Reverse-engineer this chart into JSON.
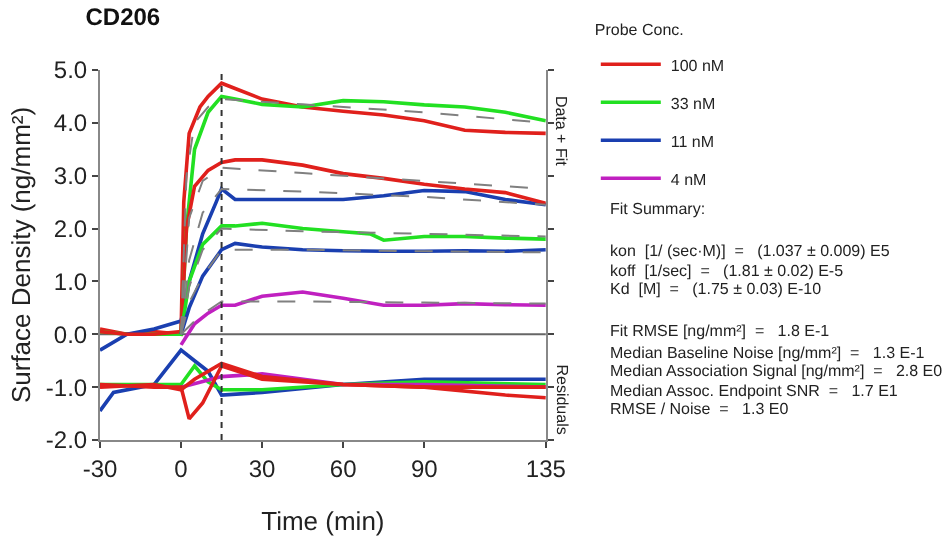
{
  "chart_data": {
    "type": "line",
    "title": "CD206",
    "xlabel": "Time (min)",
    "ylabel": "Surface Density (ng/mm²)",
    "legend_title": "Probe Conc.",
    "xlim": [
      -30,
      135
    ],
    "xticks": [
      -30,
      0,
      30,
      60,
      90,
      135
    ],
    "ylim": [
      -2,
      5
    ],
    "yticks": [
      {
        "value": -2,
        "label": "-2.0"
      },
      {
        "value": -1,
        "label": "-1.0"
      },
      {
        "value": 0,
        "label": "0.0"
      },
      {
        "value": 1,
        "label": "1.0"
      },
      {
        "value": 2,
        "label": "2.0"
      },
      {
        "value": 3,
        "label": "3.0"
      },
      {
        "value": 4,
        "label": "4.0"
      },
      {
        "value": 5,
        "label": "5.0"
      }
    ],
    "grid": false,
    "legend": "top right",
    "ref_lines": [
      {
        "axis": "x",
        "value": 15,
        "color": "#333333",
        "line_style": "dotted"
      },
      {
        "axis": "y",
        "value": 0,
        "color": "#666666",
        "line_style": "solid"
      }
    ],
    "annotations": [
      "Data + Fit",
      "Residuals",
      "Fit Summary:",
      "kon  [1/ (sec·M)]  =   (1.037 ± 0.009) E5",
      "koff  [1/sec]  =   (1.81 ± 0.02) E-5",
      "Kd  [M]  =   (1.75 ± 0.03) E-10",
      "Fit RMSE [ng/mm²]  =   1.8 E-1",
      "Median Baseline Noise [ng/mm²]  =   1.3 E-1",
      "Median Association Signal [ng/mm²]  =   2.8 E0",
      "Median Assoc. Endpoint SNR  =   1.7 E1",
      "RMSE / Noise  =   1.3 E0"
    ],
    "series": [
      {
        "name": "100 nM",
        "color": "#e0201c",
        "x": [
          -30,
          -20,
          -10,
          0,
          1,
          3,
          7,
          10,
          15,
          20,
          30,
          45,
          60,
          75,
          90,
          105,
          120,
          135
        ],
        "values": [
          0.1,
          0.0,
          0.05,
          0.0,
          2.5,
          3.8,
          4.3,
          4.5,
          4.75,
          4.65,
          4.45,
          4.3,
          4.22,
          4.15,
          4.04,
          3.86,
          3.82,
          3.8
        ]
      },
      {
        "name": "33 nM",
        "color": "#22e022",
        "x": [
          -30,
          -20,
          -10,
          0,
          2,
          5,
          10,
          15,
          20,
          30,
          45,
          60,
          75,
          90,
          105,
          120,
          135
        ],
        "values": [
          0.05,
          0.0,
          0.0,
          0.0,
          2.0,
          3.5,
          4.2,
          4.5,
          4.45,
          4.35,
          4.3,
          4.42,
          4.4,
          4.34,
          4.3,
          4.2,
          4.04
        ]
      },
      {
        "name": "11 nM",
        "color": "#1a3fb0",
        "x": [
          -30,
          -20,
          -10,
          0,
          3,
          8,
          13,
          15,
          20,
          30,
          60,
          75,
          90,
          105,
          120,
          135
        ],
        "values": [
          -0.3,
          0.0,
          0.1,
          0.25,
          1.0,
          1.9,
          2.5,
          2.75,
          2.55,
          2.55,
          2.55,
          2.62,
          2.72,
          2.7,
          2.55,
          2.45
        ]
      },
      {
        "name": "4 nM",
        "color": "#c020c0",
        "x": [
          0,
          5,
          10,
          15,
          20,
          30,
          45,
          60,
          75,
          90,
          105,
          120,
          135
        ],
        "values": [
          -0.2,
          0.2,
          0.4,
          0.55,
          0.55,
          0.72,
          0.8,
          0.68,
          0.55,
          0.55,
          0.58,
          0.56,
          0.55
        ]
      },
      {
        "color": "#e0201c",
        "x": [
          -30,
          -20,
          -10,
          0,
          2,
          5,
          10,
          15,
          20,
          30,
          45,
          60,
          75,
          90,
          105,
          120,
          135
        ],
        "values": [
          0.05,
          0.0,
          0.0,
          0.05,
          2.0,
          2.8,
          3.1,
          3.25,
          3.3,
          3.3,
          3.2,
          3.04,
          2.95,
          2.84,
          2.75,
          2.68,
          2.48
        ]
      },
      {
        "color": "#22e022",
        "x": [
          0,
          3,
          8,
          15,
          20,
          30,
          45,
          60,
          70,
          75,
          90,
          105,
          120,
          135
        ],
        "values": [
          0.0,
          1.0,
          1.7,
          2.05,
          2.05,
          2.1,
          2.0,
          1.94,
          1.9,
          1.78,
          1.85,
          1.85,
          1.82,
          1.8
        ]
      },
      {
        "color": "#1a3fb0",
        "x": [
          0,
          3,
          8,
          15,
          20,
          30,
          45,
          60,
          75,
          90,
          105,
          120,
          135
        ],
        "values": [
          0.0,
          0.5,
          1.1,
          1.6,
          1.72,
          1.65,
          1.6,
          1.58,
          1.57,
          1.57,
          1.58,
          1.57,
          1.6
        ]
      },
      {
        "color": "#808080",
        "line_style": "dashed",
        "x": [
          0,
          2,
          5,
          10,
          15,
          45,
          90,
          135
        ],
        "values": [
          0.0,
          3.0,
          4.0,
          4.3,
          4.45,
          4.35,
          4.2,
          4.0
        ]
      },
      {
        "color": "#808080",
        "line_style": "dashed",
        "x": [
          0,
          3,
          8,
          15,
          45,
          90,
          135
        ],
        "values": [
          0.0,
          2.2,
          2.9,
          3.15,
          3.05,
          2.9,
          2.75
        ]
      },
      {
        "color": "#808080",
        "line_style": "dashed",
        "x": [
          0,
          3,
          8,
          15,
          45,
          90,
          135
        ],
        "values": [
          0.0,
          1.4,
          2.3,
          2.75,
          2.7,
          2.6,
          2.45
        ]
      },
      {
        "color": "#808080",
        "line_style": "dashed",
        "x": [
          0,
          3,
          8,
          15,
          45,
          90,
          135
        ],
        "values": [
          0.0,
          0.9,
          1.6,
          2.0,
          1.95,
          1.9,
          1.85
        ]
      },
      {
        "color": "#808080",
        "line_style": "dashed",
        "x": [
          0,
          3,
          8,
          15,
          45,
          90,
          135
        ],
        "values": [
          0.0,
          0.6,
          1.1,
          1.6,
          1.6,
          1.57,
          1.55
        ]
      },
      {
        "color": "#808080",
        "line_style": "dashed",
        "x": [
          0,
          5,
          10,
          15,
          45,
          90,
          135
        ],
        "values": [
          0.0,
          0.25,
          0.45,
          0.62,
          0.62,
          0.6,
          0.58
        ]
      },
      {
        "color": "#1a3fb0",
        "x": [
          -30,
          -25,
          -10,
          0,
          5,
          10,
          15,
          30,
          60,
          90,
          135
        ],
        "values": [
          -1.45,
          -1.1,
          -0.95,
          -0.3,
          -0.5,
          -0.7,
          -1.15,
          -1.1,
          -0.95,
          -0.85,
          -0.85
        ]
      },
      {
        "color": "#22e022",
        "x": [
          -30,
          -10,
          0,
          5,
          10,
          15,
          30,
          60,
          90,
          135
        ],
        "values": [
          -0.95,
          -0.95,
          -0.95,
          -0.6,
          -0.9,
          -1.05,
          -1.05,
          -0.95,
          -0.9,
          -0.95
        ]
      },
      {
        "color": "#c020c0",
        "x": [
          0,
          15,
          30,
          60,
          90,
          135
        ],
        "values": [
          -1.0,
          -0.8,
          -0.75,
          -0.95,
          -0.95,
          -1.0
        ]
      },
      {
        "color": "#e0201c",
        "x": [
          -30,
          -10,
          0,
          3,
          8,
          15,
          30,
          60,
          90,
          120,
          135
        ],
        "values": [
          -0.95,
          -1.0,
          -1.0,
          -1.6,
          -1.3,
          -0.6,
          -0.85,
          -0.95,
          -1.0,
          -1.15,
          -1.2
        ]
      },
      {
        "color": "#e0201c",
        "x": [
          -30,
          -10,
          0,
          5,
          15,
          30,
          60,
          90,
          135
        ],
        "values": [
          -1.0,
          -0.95,
          -1.05,
          -0.85,
          -0.55,
          -0.8,
          -0.95,
          -1.0,
          -1.0
        ]
      }
    ]
  }
}
